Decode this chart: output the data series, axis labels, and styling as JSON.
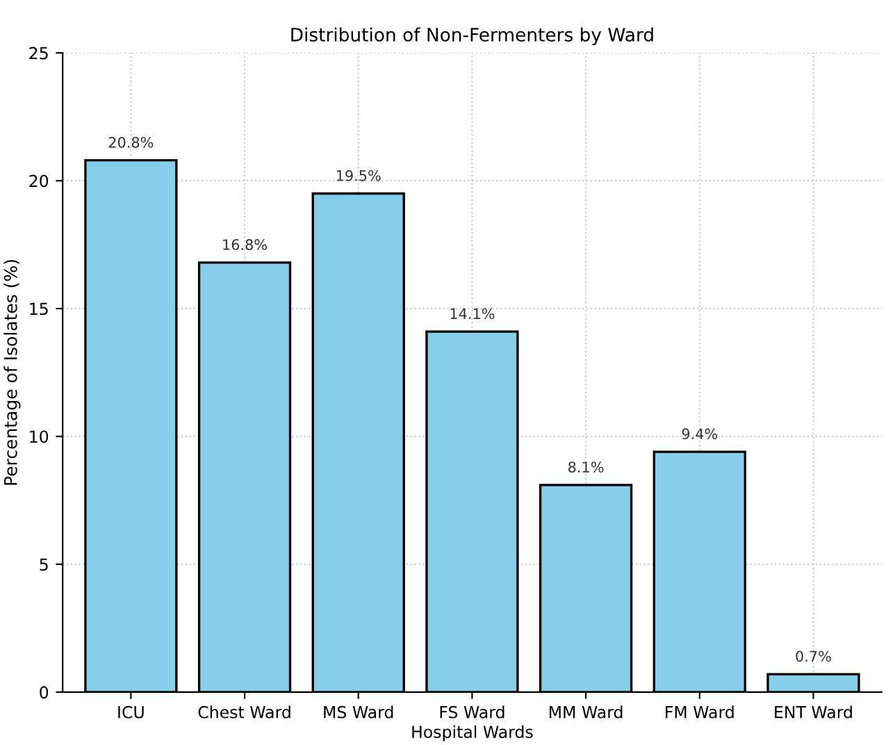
{
  "chart_data": {
    "type": "bar",
    "title": "Distribution of Non-Fermenters by Ward",
    "xlabel": "Hospital Wards",
    "ylabel": "Percentage of Isolates (%)",
    "categories": [
      "ICU",
      "Chest Ward",
      "MS Ward",
      "FS Ward",
      "MM Ward",
      "FM Ward",
      "ENT Ward"
    ],
    "values": [
      20.8,
      16.8,
      19.5,
      14.1,
      8.1,
      9.4,
      0.7
    ],
    "value_labels": [
      "20.8%",
      "16.8%",
      "19.5%",
      "14.1%",
      "8.1%",
      "9.4%",
      "0.7%"
    ],
    "color": "#87ceeb",
    "ylim": [
      0,
      25
    ],
    "yticks": [
      0,
      5,
      10,
      15,
      20,
      25
    ],
    "grid": true
  }
}
